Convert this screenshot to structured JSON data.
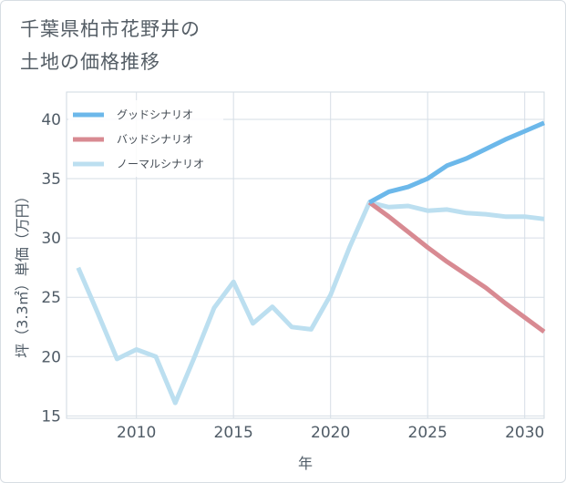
{
  "title_lines": [
    "千葉県柏市花野井の",
    "土地の価格推移"
  ],
  "chart_data": {
    "type": "line",
    "xlabel": "年",
    "ylabel": "坪（3.3㎡）単価（万円）",
    "xlim": [
      2006.4,
      2031
    ],
    "ylim": [
      14.8,
      42.3
    ],
    "x_ticks": [
      2010,
      2015,
      2020,
      2025,
      2030
    ],
    "y_ticks": [
      15,
      20,
      25,
      30,
      35,
      40
    ],
    "grid": true,
    "legend_position": "top-left",
    "series": [
      {
        "name": "グッドシナリオ",
        "color": "#6cb8ea",
        "x": [
          2022,
          2023,
          2024,
          2025,
          2026,
          2027,
          2028,
          2029,
          2030,
          2031
        ],
        "y": [
          33.0,
          33.9,
          34.3,
          35.0,
          36.1,
          36.7,
          37.5,
          38.3,
          39.0,
          39.7
        ]
      },
      {
        "name": "バッドシナリオ",
        "color": "#d88a92",
        "x": [
          2022,
          2023,
          2024,
          2025,
          2026,
          2027,
          2028,
          2029,
          2030,
          2031
        ],
        "y": [
          33.0,
          31.8,
          30.5,
          29.2,
          28.0,
          26.9,
          25.8,
          24.5,
          23.3,
          22.1
        ]
      },
      {
        "name": "ノーマルシナリオ",
        "color": "#bcdff0",
        "x": [
          2007,
          2008,
          2009,
          2010,
          2011,
          2012,
          2013,
          2014,
          2015,
          2016,
          2017,
          2018,
          2019,
          2020,
          2021,
          2022,
          2023,
          2024,
          2025,
          2026,
          2027,
          2028,
          2029,
          2030,
          2031
        ],
        "y": [
          27.5,
          23.7,
          19.8,
          20.6,
          20.0,
          16.1,
          20.0,
          24.1,
          26.3,
          22.8,
          24.2,
          22.5,
          22.3,
          25.2,
          29.3,
          33.0,
          32.6,
          32.7,
          32.3,
          32.4,
          32.1,
          32.0,
          31.8,
          31.8,
          31.6
        ]
      }
    ]
  }
}
